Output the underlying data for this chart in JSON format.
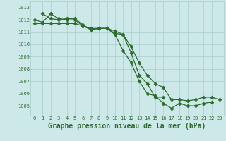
{
  "background_color": "#cce8e8",
  "grid_color": "#aacccc",
  "line_color": "#2d6a2d",
  "marker": "D",
  "markersize": 2.5,
  "linewidth": 0.9,
  "title": "Graphe pression niveau de la mer (hPa)",
  "title_fontsize": 7.0,
  "xlim": [
    -0.5,
    23.5
  ],
  "ylim": [
    1004.2,
    1013.5
  ],
  "yticks": [
    1005,
    1006,
    1007,
    1008,
    1009,
    1010,
    1011,
    1012,
    1013
  ],
  "xticks": [
    0,
    1,
    2,
    3,
    4,
    5,
    6,
    7,
    8,
    9,
    10,
    11,
    12,
    13,
    14,
    15,
    16,
    17,
    18,
    19,
    20,
    21,
    22,
    23
  ],
  "series": [
    [
      1012.0,
      1011.8,
      1012.5,
      1012.1,
      1012.0,
      1012.0,
      1011.5,
      1011.3,
      1011.3,
      1011.3,
      1010.8,
      1009.5,
      1008.5,
      1007.0,
      1006.0,
      1005.8,
      1005.2,
      1004.8,
      1005.2,
      1005.0,
      1005.0,
      1005.2,
      1005.3,
      null
    ],
    [
      null,
      1012.5,
      1012.1,
      1012.0,
      1012.1,
      1012.1,
      1011.6,
      1011.2,
      1011.3,
      1011.3,
      1010.9,
      1010.8,
      1009.3,
      1007.5,
      1006.8,
      1005.7,
      1005.7,
      null,
      null,
      null,
      null,
      null,
      null,
      null
    ],
    [
      1011.7,
      1011.7,
      1011.7,
      1011.7,
      1011.7,
      1011.7,
      1011.5,
      1011.2,
      1011.3,
      1011.3,
      1011.1,
      1010.8,
      1009.8,
      1008.5,
      1007.5,
      1006.8,
      1006.5,
      1005.5,
      1005.5,
      1005.4,
      1005.5,
      1005.7,
      1005.7,
      1005.5
    ]
  ]
}
